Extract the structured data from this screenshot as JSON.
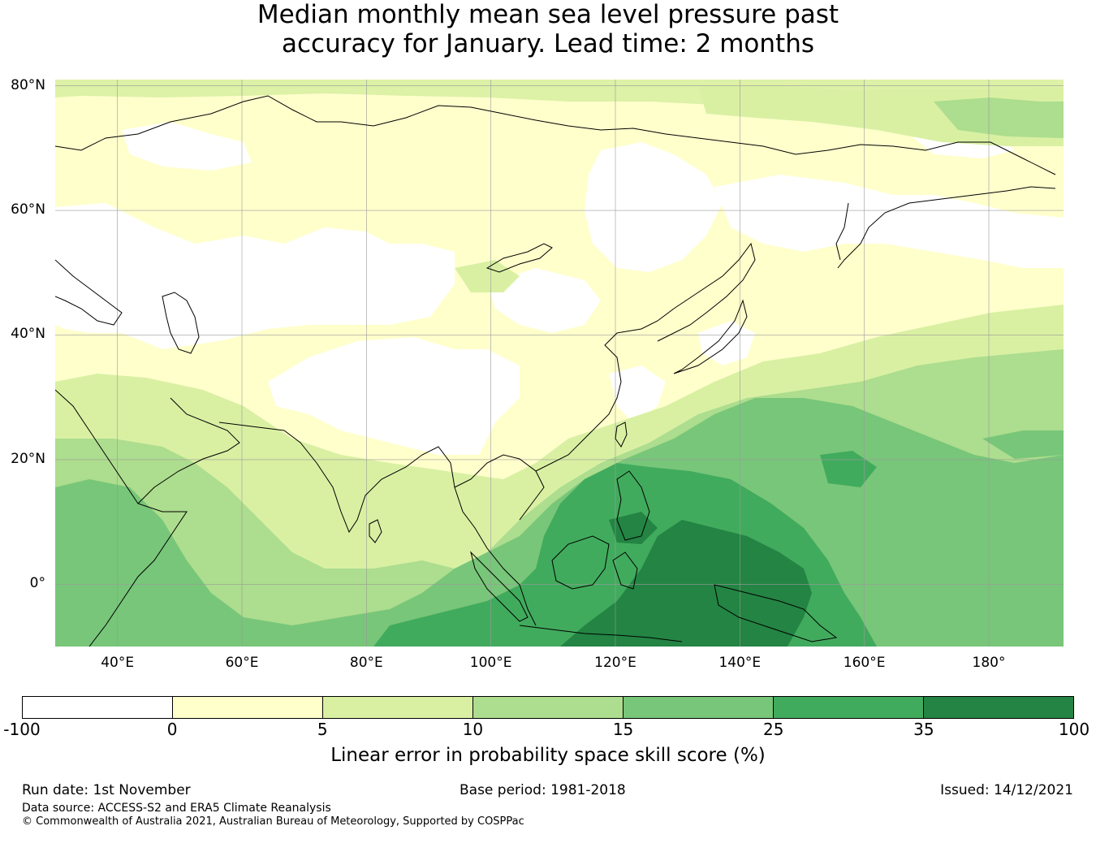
{
  "title": {
    "line1": "Median monthly mean sea level pressure past",
    "line2": "accuracy for January. Lead time: 2 months"
  },
  "map": {
    "lon_range": [
      30,
      192
    ],
    "lat_range": [
      -10,
      81
    ],
    "lat_ticks": [
      {
        "value": 80,
        "label": "80°N"
      },
      {
        "value": 60,
        "label": "60°N"
      },
      {
        "value": 40,
        "label": "40°N"
      },
      {
        "value": 20,
        "label": "20°N"
      },
      {
        "value": 0,
        "label": "0°"
      }
    ],
    "lon_ticks": [
      {
        "value": 40,
        "label": "40°E"
      },
      {
        "value": 60,
        "label": "60°E"
      },
      {
        "value": 80,
        "label": "80°E"
      },
      {
        "value": 100,
        "label": "100°E"
      },
      {
        "value": 120,
        "label": "120°E"
      },
      {
        "value": 140,
        "label": "140°E"
      },
      {
        "value": 160,
        "label": "160°E"
      },
      {
        "value": 180,
        "label": "180°"
      }
    ]
  },
  "colorbar": {
    "ticks": [
      "-100",
      "0",
      "5",
      "10",
      "15",
      "25",
      "35",
      "100"
    ],
    "colors": [
      "#ffffff",
      "#ffffcc",
      "#d9f0a3",
      "#addd8e",
      "#78c679",
      "#41ab5d",
      "#238443"
    ],
    "label": "Linear error in probability space skill score (%)"
  },
  "footer": {
    "run_date": "Run date: 1st November",
    "base_period": "Base period: 1981-2018",
    "issued": "Issued: 14/12/2021",
    "data_source": "Data source: ACCESS-S2 and ERA5 Climate Reanalysis",
    "copyright": "© Commonwealth of Australia 2021, Australian Bureau of Meteorology, Supported by COSPPac"
  }
}
